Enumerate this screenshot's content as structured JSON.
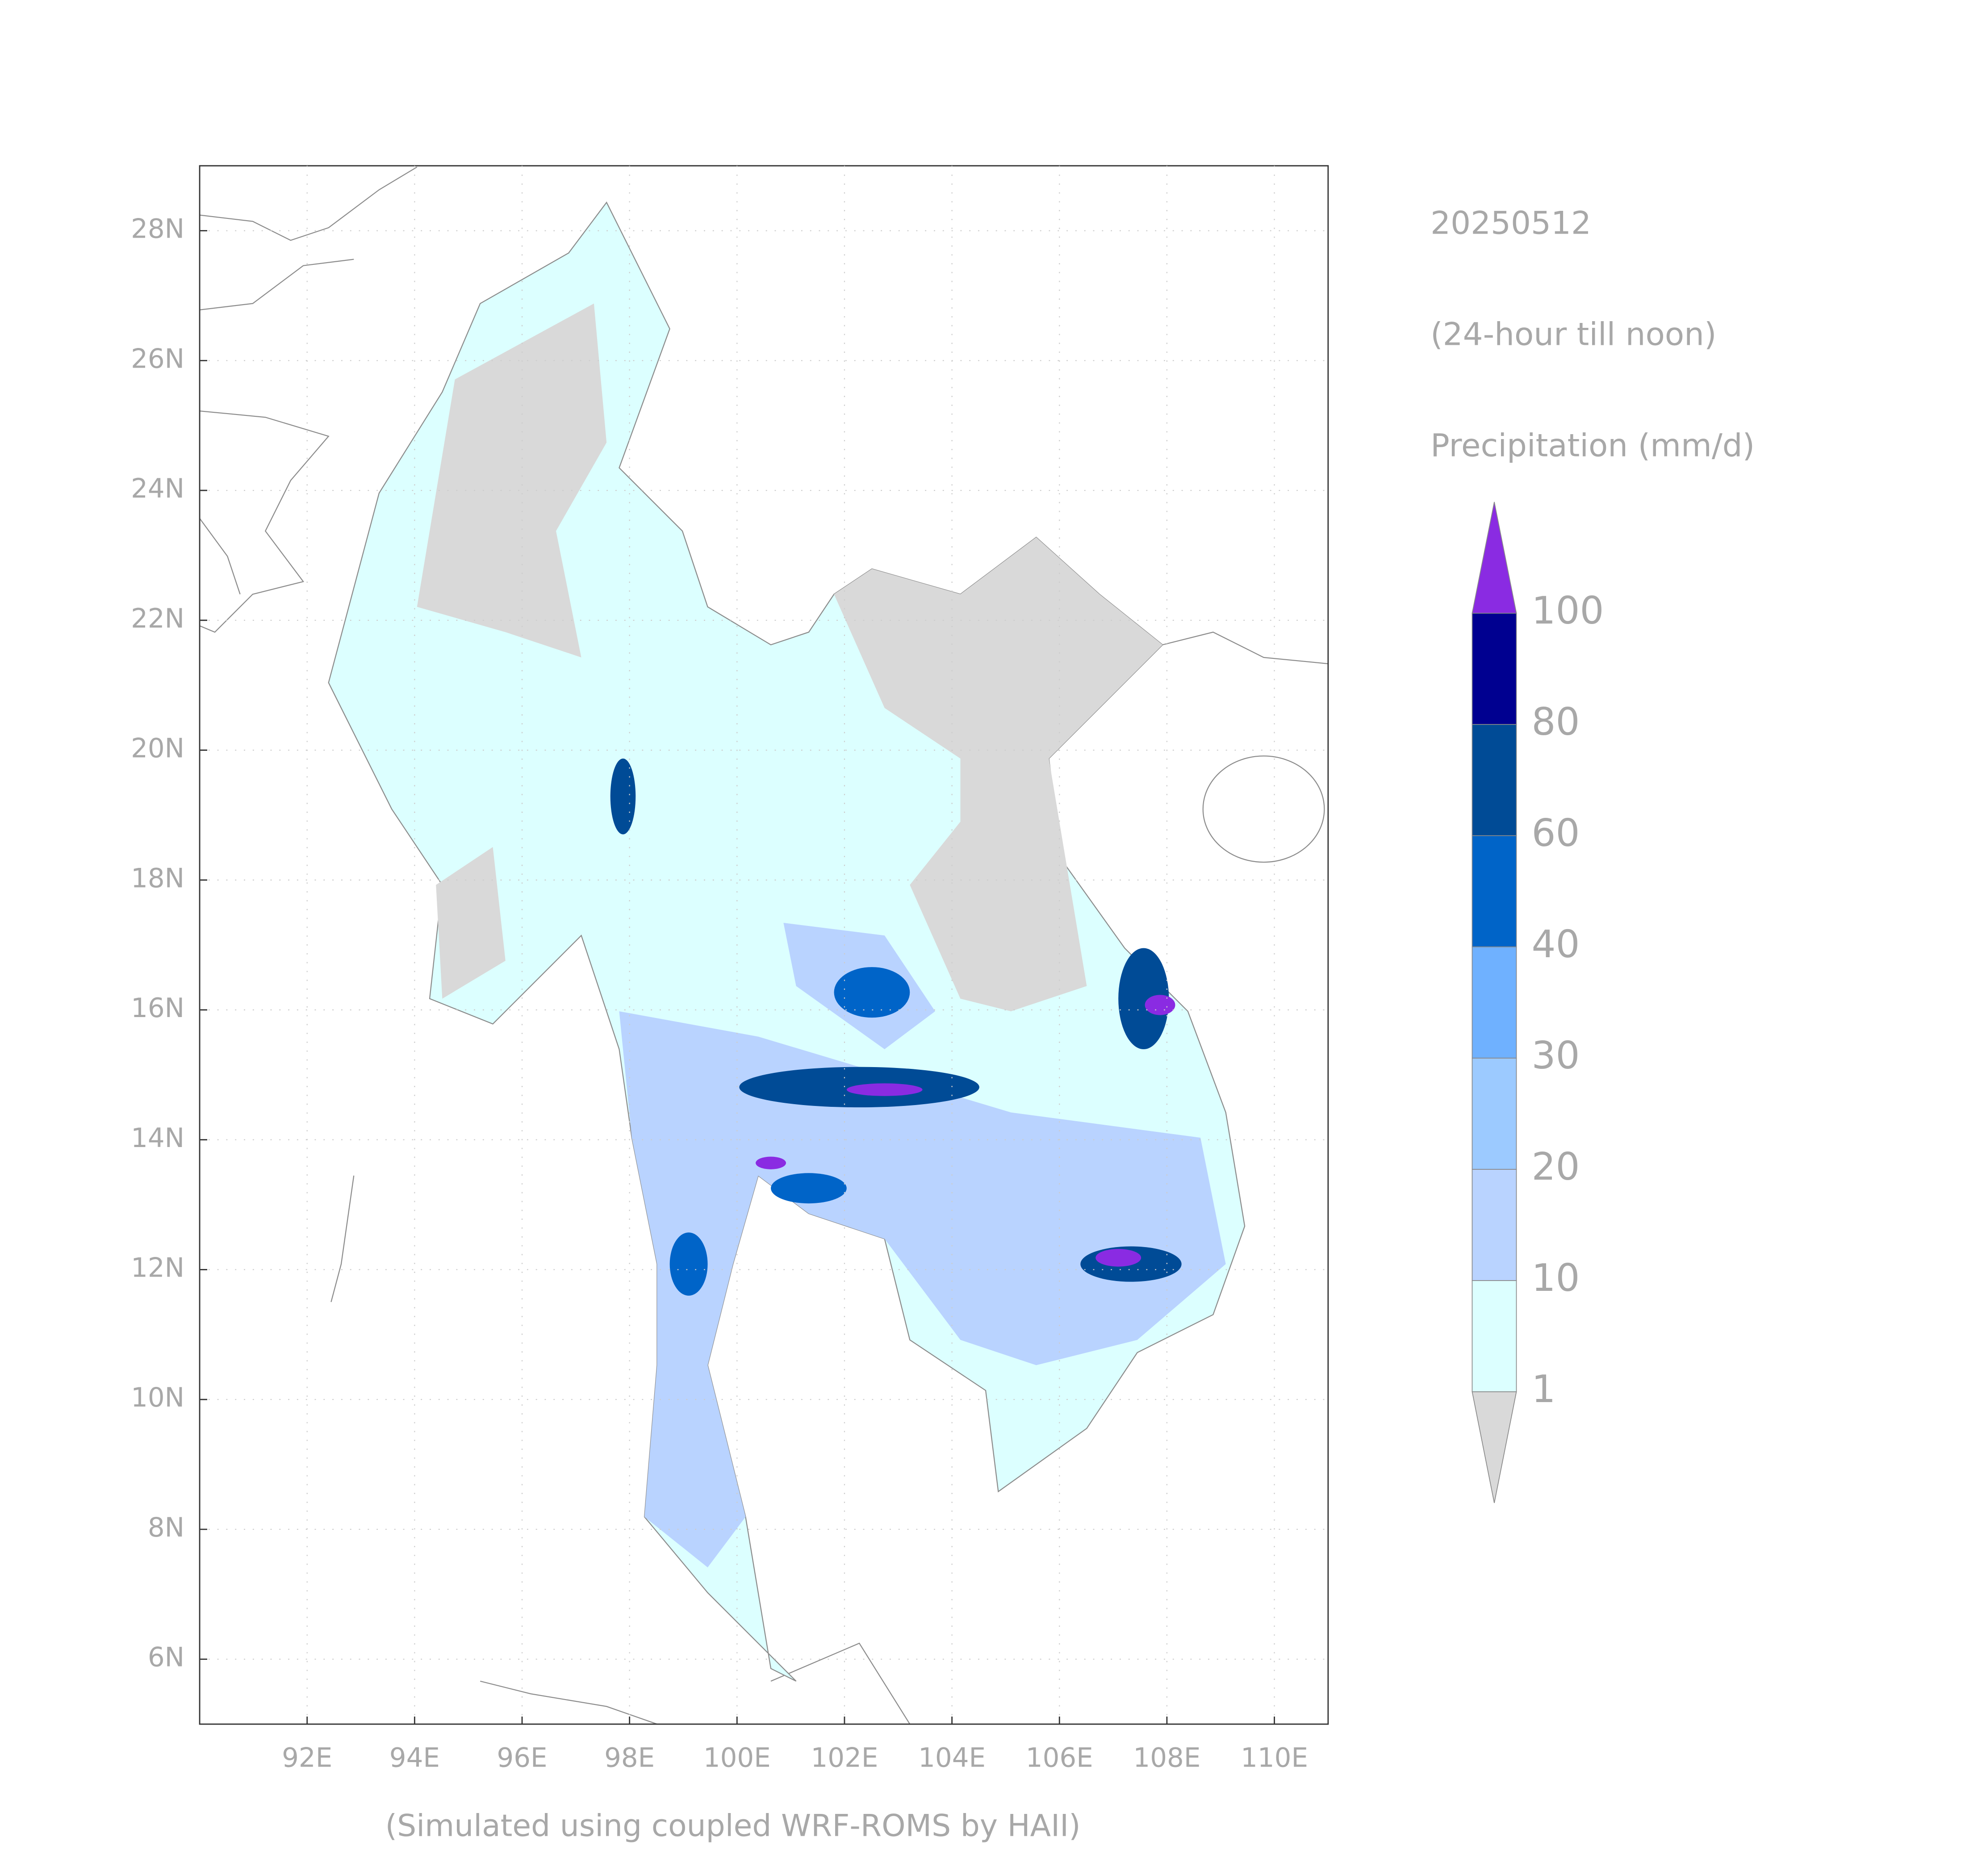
{
  "map": {
    "date": "20250512",
    "period": "(24-hour till noon)",
    "variable": "Precipitation (mm/d)",
    "footnote": "(Simulated using coupled WRF-ROMS by HAII)",
    "xlim": [
      90,
      111
    ],
    "ylim": [
      5,
      29
    ],
    "xticks": [
      {
        "value": 92,
        "label": "92E"
      },
      {
        "value": 94,
        "label": "94E"
      },
      {
        "value": 96,
        "label": "96E"
      },
      {
        "value": 98,
        "label": "98E"
      },
      {
        "value": 100,
        "label": "100E"
      },
      {
        "value": 102,
        "label": "102E"
      },
      {
        "value": 104,
        "label": "104E"
      },
      {
        "value": 106,
        "label": "106E"
      },
      {
        "value": 108,
        "label": "108E"
      },
      {
        "value": 110,
        "label": "110E"
      }
    ],
    "yticks": [
      {
        "value": 6,
        "label": "6N"
      },
      {
        "value": 8,
        "label": "8N"
      },
      {
        "value": 10,
        "label": "10N"
      },
      {
        "value": 12,
        "label": "12N"
      },
      {
        "value": 14,
        "label": "14N"
      },
      {
        "value": 16,
        "label": "16N"
      },
      {
        "value": 18,
        "label": "18N"
      },
      {
        "value": 20,
        "label": "20N"
      },
      {
        "value": 22,
        "label": "22N"
      },
      {
        "value": 24,
        "label": "24N"
      },
      {
        "value": 26,
        "label": "26N"
      },
      {
        "value": 28,
        "label": "28N"
      }
    ],
    "grid": true
  },
  "colorbar": {
    "levels": [
      1,
      10,
      20,
      30,
      40,
      60,
      80,
      100
    ],
    "colors": [
      "#d9d9d9",
      "#dcffff",
      "#b9d3ff",
      "#9ccaff",
      "#6fb1ff",
      "#0064c8",
      "#004b96",
      "#000090",
      "#8a2be2"
    ]
  }
}
